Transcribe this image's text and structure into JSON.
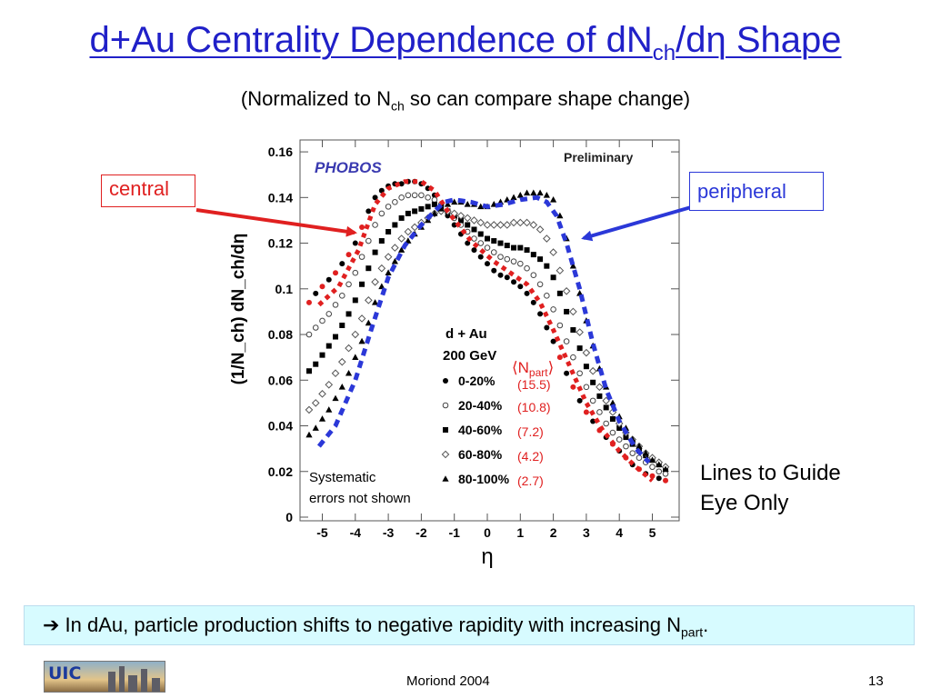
{
  "slide": {
    "title_prefix": "d+Au Centrality Dependence of dN",
    "title_sub": "ch",
    "title_suffix": "/dη Shape",
    "subtitle_prefix": "(Normalized to N",
    "subtitle_sub": "ch",
    "subtitle_suffix": " so can compare shape change)",
    "callout_central": "central",
    "callout_peripheral": "peripheral",
    "guide_line1": "Lines to Guide",
    "guide_line2": "Eye Only",
    "conclusion_prefix": "➔ In dAu, particle production shifts to negative rapidity with increasing N",
    "conclusion_sub": "part",
    "conclusion_suffix": ".",
    "footer_center": "Moriond 2004",
    "footer_page": "13",
    "logo_text": "UIC",
    "colors": {
      "title": "#2020c8",
      "central": "#e02020",
      "peripheral": "#2b38d8",
      "footer_box": "#d7fbff"
    }
  },
  "chart_data": {
    "type": "scatter",
    "xlabel": "η",
    "ylabel": "(1/N_ch) dN_ch/dη",
    "xlim": [
      -5.6,
      5.6
    ],
    "ylim": [
      0,
      0.165
    ],
    "xticks": [
      "-5",
      "-4",
      "-3",
      "-2",
      "-1",
      "0",
      "1",
      "2",
      "3",
      "4",
      "5"
    ],
    "yticks": [
      "0",
      "0.02",
      "0.04",
      "0.06",
      "0.08",
      "0.1",
      "0.12",
      "0.14",
      "0.16"
    ],
    "preliminary_label": "Preliminary",
    "experiment_logo": "PHOBOS",
    "legend_title1": "d + Au",
    "legend_title2": "200 GeV",
    "npart_header": "⟨N",
    "npart_header_sub": "part",
    "npart_header_close": "⟩",
    "annotation": [
      "Systematic",
      "errors not shown"
    ],
    "x": [
      -5.4,
      -5.2,
      -5.0,
      -4.8,
      -4.6,
      -4.4,
      -4.2,
      -4.0,
      -3.8,
      -3.6,
      -3.4,
      -3.2,
      -3.0,
      -2.8,
      -2.6,
      -2.4,
      -2.2,
      -2.0,
      -1.8,
      -1.6,
      -1.4,
      -1.2,
      -1.0,
      -0.8,
      -0.6,
      -0.4,
      -0.2,
      0.0,
      0.2,
      0.4,
      0.6,
      0.8,
      1.0,
      1.2,
      1.4,
      1.6,
      1.8,
      2.0,
      2.2,
      2.4,
      2.6,
      2.8,
      3.0,
      3.2,
      3.4,
      3.6,
      3.8,
      4.0,
      4.2,
      4.4,
      4.6,
      4.8,
      5.0,
      5.2,
      5.4
    ],
    "series": [
      {
        "name": "0-20%",
        "npart": "(15.5)",
        "marker": "dot",
        "values": [
          0.094,
          0.098,
          0.101,
          0.104,
          0.107,
          0.111,
          0.115,
          0.12,
          0.127,
          0.134,
          0.14,
          0.143,
          0.145,
          0.146,
          0.146,
          0.147,
          0.147,
          0.146,
          0.144,
          0.141,
          0.137,
          0.132,
          0.128,
          0.124,
          0.12,
          0.117,
          0.114,
          0.111,
          0.108,
          0.106,
          0.105,
          0.103,
          0.101,
          0.098,
          0.094,
          0.089,
          0.083,
          0.077,
          0.07,
          0.063,
          0.057,
          0.051,
          0.046,
          0.042,
          0.038,
          0.035,
          0.032,
          0.029,
          0.026,
          0.023,
          0.021,
          0.019,
          0.018,
          0.017,
          0.016
        ]
      },
      {
        "name": "20-40%",
        "npart": "(10.8)",
        "marker": "open-circle",
        "values": [
          0.08,
          0.083,
          0.086,
          0.089,
          0.093,
          0.097,
          0.102,
          0.107,
          0.114,
          0.121,
          0.128,
          0.133,
          0.136,
          0.138,
          0.14,
          0.141,
          0.141,
          0.141,
          0.14,
          0.139,
          0.137,
          0.134,
          0.131,
          0.128,
          0.125,
          0.122,
          0.12,
          0.118,
          0.116,
          0.114,
          0.113,
          0.112,
          0.111,
          0.109,
          0.106,
          0.102,
          0.097,
          0.091,
          0.084,
          0.077,
          0.07,
          0.063,
          0.057,
          0.051,
          0.046,
          0.041,
          0.037,
          0.034,
          0.031,
          0.028,
          0.026,
          0.024,
          0.022,
          0.02,
          0.019
        ]
      },
      {
        "name": "40-60%",
        "npart": "(7.2)",
        "marker": "filled-square",
        "values": [
          0.064,
          0.067,
          0.071,
          0.075,
          0.079,
          0.084,
          0.089,
          0.095,
          0.102,
          0.109,
          0.116,
          0.121,
          0.125,
          0.128,
          0.131,
          0.133,
          0.134,
          0.135,
          0.136,
          0.137,
          0.136,
          0.134,
          0.132,
          0.13,
          0.128,
          0.126,
          0.124,
          0.122,
          0.121,
          0.12,
          0.119,
          0.118,
          0.118,
          0.117,
          0.115,
          0.113,
          0.11,
          0.105,
          0.098,
          0.09,
          0.082,
          0.074,
          0.066,
          0.059,
          0.053,
          0.048,
          0.043,
          0.039,
          0.035,
          0.032,
          0.029,
          0.027,
          0.025,
          0.023,
          0.021
        ]
      },
      {
        "name": "60-80%",
        "npart": "(4.2)",
        "marker": "open-diamond",
        "values": [
          0.047,
          0.05,
          0.054,
          0.058,
          0.063,
          0.068,
          0.074,
          0.08,
          0.087,
          0.095,
          0.103,
          0.109,
          0.114,
          0.118,
          0.122,
          0.125,
          0.127,
          0.129,
          0.131,
          0.133,
          0.134,
          0.134,
          0.133,
          0.132,
          0.131,
          0.13,
          0.129,
          0.128,
          0.128,
          0.128,
          0.128,
          0.129,
          0.129,
          0.129,
          0.128,
          0.126,
          0.122,
          0.116,
          0.108,
          0.099,
          0.09,
          0.081,
          0.072,
          0.064,
          0.057,
          0.051,
          0.046,
          0.041,
          0.037,
          0.034,
          0.031,
          0.028,
          0.026,
          0.024,
          0.022
        ]
      },
      {
        "name": "80-100%",
        "npart": "(2.7)",
        "marker": "filled-triangle",
        "values": [
          0.036,
          0.039,
          0.043,
          0.047,
          0.052,
          0.057,
          0.063,
          0.07,
          0.077,
          0.085,
          0.094,
          0.101,
          0.107,
          0.112,
          0.117,
          0.121,
          0.124,
          0.127,
          0.13,
          0.133,
          0.135,
          0.137,
          0.138,
          0.138,
          0.137,
          0.137,
          0.136,
          0.136,
          0.137,
          0.138,
          0.139,
          0.14,
          0.141,
          0.142,
          0.142,
          0.142,
          0.141,
          0.139,
          0.132,
          0.122,
          0.11,
          0.098,
          0.086,
          0.075,
          0.065,
          0.057,
          0.05,
          0.044,
          0.039,
          0.034,
          0.031,
          0.028,
          0.025,
          0.023,
          0.021
        ]
      }
    ],
    "guide_lines": [
      {
        "name": "central",
        "color": "#e02020",
        "x": [
          -5.1,
          -4.5,
          -3.9,
          -3.4,
          -3.0,
          -2.5,
          -2.0,
          -1.6,
          -1.2,
          -0.5,
          0.2,
          0.8,
          1.2,
          1.6,
          2.0,
          2.5,
          3.0,
          3.5,
          4.0,
          4.5,
          5.0
        ],
        "values": [
          0.093,
          0.101,
          0.117,
          0.137,
          0.144,
          0.147,
          0.147,
          0.143,
          0.134,
          0.121,
          0.112,
          0.106,
          0.102,
          0.094,
          0.082,
          0.066,
          0.05,
          0.038,
          0.029,
          0.022,
          0.016
        ]
      },
      {
        "name": "peripheral",
        "color": "#2b38d8",
        "x": [
          -5.1,
          -4.6,
          -4.0,
          -3.5,
          -3.0,
          -2.5,
          -2.0,
          -1.6,
          -1.3,
          -1.0,
          -0.5,
          0.0,
          0.5,
          1.0,
          1.5,
          1.8,
          2.1,
          2.4,
          2.8,
          3.2,
          3.6,
          4.0,
          4.5,
          4.9
        ],
        "values": [
          0.031,
          0.04,
          0.06,
          0.083,
          0.105,
          0.119,
          0.128,
          0.134,
          0.138,
          0.139,
          0.138,
          0.136,
          0.137,
          0.139,
          0.14,
          0.138,
          0.132,
          0.12,
          0.1,
          0.076,
          0.056,
          0.042,
          0.03,
          0.024
        ]
      }
    ]
  }
}
